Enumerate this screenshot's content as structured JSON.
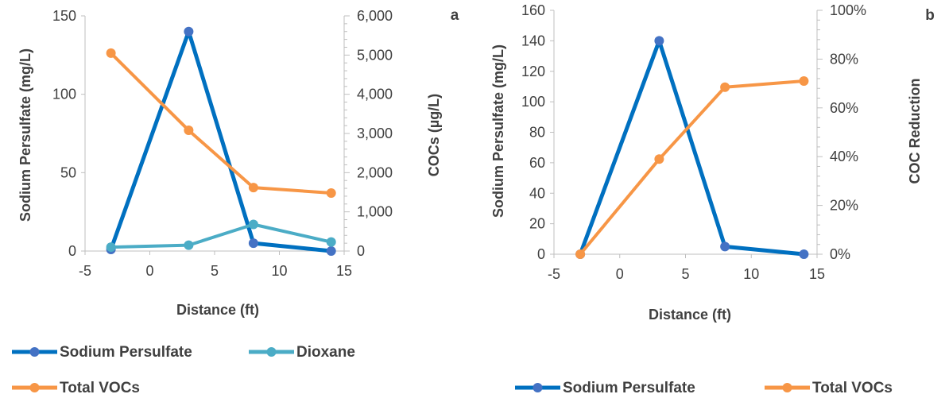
{
  "chart_data": [
    {
      "type": "line",
      "panel_label": "a",
      "xlabel": "Distance (ft)",
      "ylabel": "Sodium Persulfate (mg/L)",
      "y2label": "COCs (µg/L)",
      "xlim": [
        -5,
        15
      ],
      "xticks": [
        "-5",
        "0",
        "5",
        "10",
        "15"
      ],
      "ylim": [
        0,
        150
      ],
      "yticks": [
        "0",
        "50",
        "100",
        "150"
      ],
      "y2lim": [
        0,
        6000
      ],
      "y2ticks": [
        "0",
        "1,000",
        "2,000",
        "3,000",
        "4,000",
        "5,000",
        "6,000"
      ],
      "grid": false,
      "legend_position": "bottom",
      "series": [
        {
          "name": "Sodium Persulfate",
          "axis": "left",
          "color": "#0070C0",
          "marker_color": "#4472C4",
          "x": [
            -3,
            3,
            8,
            14
          ],
          "values": [
            1,
            140,
            5,
            0
          ]
        },
        {
          "name": "Dioxane",
          "axis": "right",
          "color": "#4BACC6",
          "marker_color": "#4BACC6",
          "x": [
            -3,
            3,
            8,
            14
          ],
          "values": [
            100,
            150,
            680,
            230
          ]
        },
        {
          "name": "Total VOCs",
          "axis": "right",
          "color": "#F79646",
          "marker_color": "#F79646",
          "x": [
            -3,
            3,
            8,
            14
          ],
          "values": [
            5050,
            3080,
            1620,
            1480
          ]
        }
      ]
    },
    {
      "type": "line",
      "panel_label": "b",
      "xlabel": "Distance (ft)",
      "ylabel": "Sodium Persulfate (mg/L)",
      "y2label": "COC Reduction",
      "xlim": [
        -5,
        15
      ],
      "xticks": [
        "-5",
        "0",
        "5",
        "10",
        "15"
      ],
      "ylim": [
        0,
        160
      ],
      "yticks": [
        "0",
        "20",
        "40",
        "60",
        "80",
        "100",
        "120",
        "140",
        "160"
      ],
      "y2lim": [
        0,
        1
      ],
      "y2ticks": [
        "0%",
        "20%",
        "40%",
        "60%",
        "80%",
        "100%"
      ],
      "grid": false,
      "legend_position": "bottom",
      "series": [
        {
          "name": "Sodium Persulfate",
          "axis": "left",
          "color": "#0070C0",
          "marker_color": "#4472C4",
          "x": [
            -3,
            3,
            8,
            14
          ],
          "values": [
            0,
            140,
            5,
            0
          ]
        },
        {
          "name": "Total VOCs",
          "axis": "right",
          "color": "#F79646",
          "marker_color": "#F79646",
          "x": [
            -3,
            3,
            8,
            14
          ],
          "values": [
            0,
            0.39,
            0.685,
            0.71
          ]
        }
      ]
    }
  ]
}
